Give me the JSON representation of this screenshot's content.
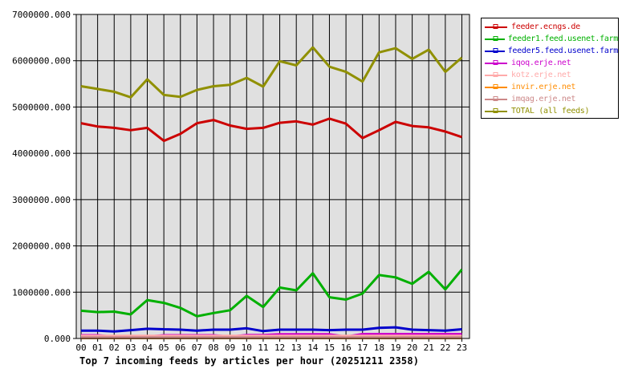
{
  "colors": {
    "background": "#ffffff",
    "plot_bg": "#e0e0e0",
    "grid": "#000000",
    "border": "#000000",
    "text": "#000000"
  },
  "chart_data": {
    "type": "line",
    "title": "Top 7 incoming feeds by articles per hour (20251211 2358)",
    "xlabel": "",
    "ylabel": "",
    "ylim": [
      0,
      7000000
    ],
    "grid": true,
    "legend_position": "right",
    "x": [
      "00",
      "01",
      "02",
      "03",
      "04",
      "05",
      "06",
      "07",
      "08",
      "09",
      "10",
      "11",
      "12",
      "13",
      "14",
      "15",
      "16",
      "17",
      "18",
      "19",
      "20",
      "21",
      "22",
      "23"
    ],
    "y_ticks": [
      {
        "value": 0,
        "label": "0.000"
      },
      {
        "value": 1000000,
        "label": "1000000.000"
      },
      {
        "value": 2000000,
        "label": "2000000.000"
      },
      {
        "value": 3000000,
        "label": "3000000.000"
      },
      {
        "value": 4000000,
        "label": "4000000.000"
      },
      {
        "value": 5000000,
        "label": "5000000.000"
      },
      {
        "value": 6000000,
        "label": "6000000.000"
      },
      {
        "value": 7000000,
        "label": "7000000.000"
      }
    ],
    "series": [
      {
        "name": "feeder.ecngs.de",
        "color": "#cc0000",
        "values": [
          4650000,
          4580000,
          4550000,
          4500000,
          4550000,
          4270000,
          4420000,
          4650000,
          4720000,
          4600000,
          4530000,
          4550000,
          4660000,
          4690000,
          4620000,
          4750000,
          4640000,
          4330000,
          4500000,
          4680000,
          4590000,
          4560000,
          4470000,
          4350000
        ]
      },
      {
        "name": "feeder1.feed.usenet.farm",
        "color": "#00b000",
        "values": [
          600000,
          570000,
          580000,
          520000,
          830000,
          770000,
          660000,
          480000,
          550000,
          610000,
          920000,
          680000,
          1100000,
          1040000,
          1410000,
          890000,
          840000,
          970000,
          1370000,
          1320000,
          1180000,
          1440000,
          1060000,
          1490000
        ]
      },
      {
        "name": "feeder5.feed.usenet.farm",
        "color": "#0000cc",
        "values": [
          170000,
          170000,
          150000,
          180000,
          210000,
          200000,
          190000,
          170000,
          190000,
          190000,
          220000,
          160000,
          190000,
          190000,
          190000,
          180000,
          190000,
          190000,
          230000,
          240000,
          190000,
          180000,
          170000,
          200000
        ]
      },
      {
        "name": "iqoq.erje.net",
        "color": "#cc00cc",
        "values": [
          70000,
          70000,
          40000,
          40000,
          40000,
          70000,
          70000,
          70000,
          70000,
          40000,
          75000,
          75000,
          90000,
          90000,
          90000,
          90000,
          40000,
          95000,
          95000,
          95000,
          95000,
          95000,
          95000,
          95000
        ]
      },
      {
        "name": "kotz.erje.net",
        "color": "#ffaaaa",
        "values": [
          55000,
          55000,
          55000,
          55000,
          55000,
          55000,
          55000,
          55000,
          55000,
          55000,
          55000,
          55000,
          55000,
          55000,
          55000,
          55000,
          55000,
          55000,
          55000,
          55000,
          55000,
          55000,
          55000,
          55000
        ]
      },
      {
        "name": "invir.erje.net",
        "color": "#ff8c00",
        "values": [
          10000,
          10000,
          10000,
          10000,
          10000,
          10000,
          10000,
          10000,
          10000,
          10000,
          10000,
          10000,
          10000,
          10000,
          10000,
          10000,
          10000,
          10000,
          10000,
          10000,
          10000,
          10000,
          10000,
          10000
        ]
      },
      {
        "name": "imqag.erje.net",
        "color": "#cc8888",
        "values": [
          25000,
          25000,
          25000,
          25000,
          25000,
          25000,
          25000,
          25000,
          25000,
          25000,
          25000,
          25000,
          25000,
          25000,
          25000,
          25000,
          25000,
          25000,
          25000,
          25000,
          25000,
          25000,
          25000,
          25000
        ]
      },
      {
        "name": "TOTAL (all feeds)",
        "color": "#909000",
        "values": [
          5450000,
          5390000,
          5330000,
          5210000,
          5600000,
          5260000,
          5220000,
          5370000,
          5450000,
          5480000,
          5630000,
          5440000,
          5990000,
          5900000,
          6290000,
          5870000,
          5760000,
          5550000,
          6180000,
          6270000,
          6040000,
          6240000,
          5760000,
          6070000
        ]
      }
    ]
  }
}
